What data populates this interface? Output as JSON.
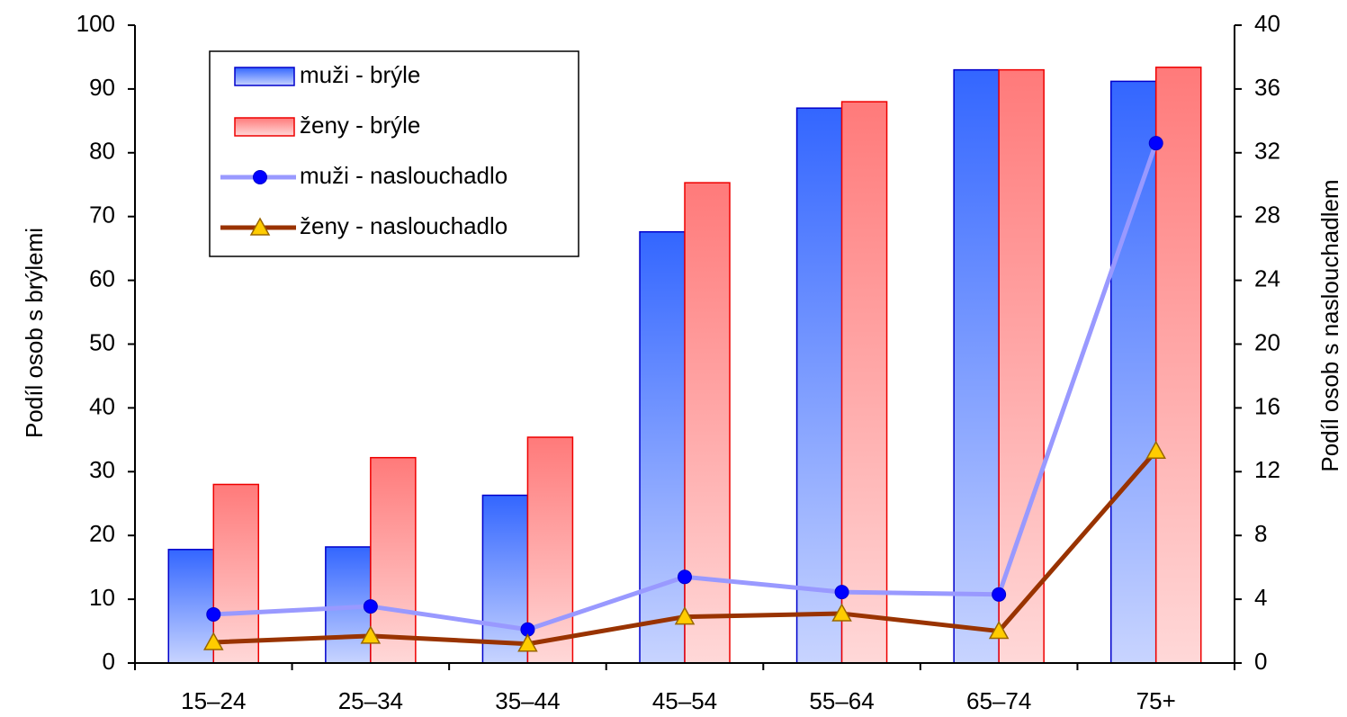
{
  "chart_data": {
    "type": "bar",
    "y_label": "Podíl osob s brýlemi",
    "y2_label": "Podíl osob s naslouchadlem",
    "categories": [
      "15–24",
      "25–34",
      "35–44",
      "45–54",
      "55–64",
      "65–74",
      "75+"
    ],
    "series": [
      {
        "name": "muži - brýle",
        "color": "#3366ff",
        "values": [
          17.8,
          18.2,
          26.3,
          67.6,
          87,
          93,
          91.2
        ]
      },
      {
        "name": "ženy - brýle",
        "color": "#ff7a7a",
        "values": [
          28,
          32.2,
          35.4,
          75.3,
          88,
          93,
          93.4
        ]
      },
      {
        "name": "muži - naslouchadlo",
        "type": "line",
        "axis": "y2",
        "color": "#9999ff",
        "marker": "circle",
        "values": [
          3.05,
          3.55,
          2.1,
          5.4,
          4.45,
          4.3,
          32.6
        ]
      },
      {
        "name": "ženy - naslouchadlo",
        "type": "line",
        "axis": "y2",
        "color": "#993300",
        "marker": "triangle",
        "values": [
          1.3,
          1.7,
          1.2,
          2.9,
          3.1,
          2.0,
          13.3
        ]
      }
    ],
    "ylim": [
      0,
      100
    ],
    "yticks": [
      0,
      10,
      20,
      30,
      40,
      50,
      60,
      70,
      80,
      90,
      100
    ],
    "y2lim": [
      0,
      40
    ],
    "y2ticks": [
      0,
      4,
      8,
      12,
      16,
      20,
      24,
      28,
      32,
      36,
      40
    ],
    "legend": "upper left"
  }
}
